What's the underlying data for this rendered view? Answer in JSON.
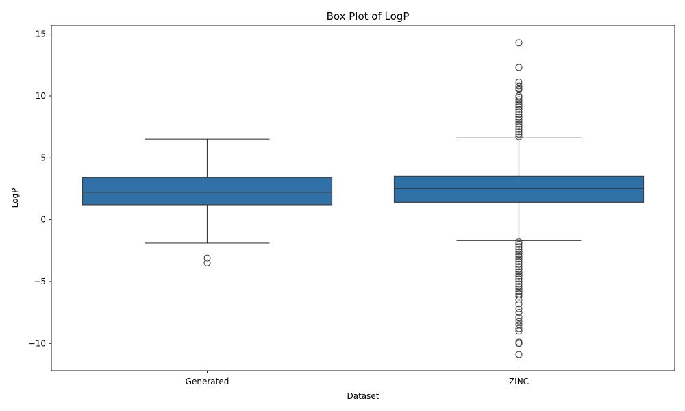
{
  "chart_data": {
    "type": "box",
    "title": "Box Plot of LogP",
    "xlabel": "Dataset",
    "ylabel": "LogP",
    "ylim": [
      -12.2,
      15.7
    ],
    "yticks": [
      -10,
      -5,
      0,
      5,
      10,
      15
    ],
    "ytick_labels": [
      "−10",
      "−5",
      "0",
      "5",
      "10",
      "15"
    ],
    "grid": false,
    "box_color": "#2f71a7",
    "line_color": "#3d3d3d",
    "categories": [
      "Generated",
      "ZINC"
    ],
    "boxes": [
      {
        "category": "Generated",
        "q1": 1.2,
        "median": 2.2,
        "q3": 3.4,
        "whisker_low": -1.9,
        "whisker_high": 6.5,
        "outliers": [
          -3.1,
          -3.5
        ]
      },
      {
        "category": "ZINC",
        "q1": 1.4,
        "median": 2.5,
        "q3": 3.5,
        "whisker_low": -1.7,
        "whisker_high": 6.6,
        "outliers": [
          14.3,
          12.3,
          11.1,
          10.8,
          10.6,
          10.5,
          10.0,
          9.9,
          9.7,
          9.5,
          9.3,
          9.1,
          8.9,
          8.7,
          8.5,
          8.3,
          8.1,
          7.9,
          7.7,
          7.5,
          7.3,
          7.1,
          6.9,
          6.7,
          -1.8,
          -2.0,
          -2.2,
          -2.4,
          -2.6,
          -2.8,
          -3.0,
          -3.2,
          -3.4,
          -3.6,
          -3.8,
          -4.0,
          -4.2,
          -4.4,
          -4.6,
          -4.8,
          -5.0,
          -5.2,
          -5.4,
          -5.6,
          -5.8,
          -6.0,
          -6.2,
          -6.5,
          -6.8,
          -7.2,
          -7.5,
          -7.9,
          -8.2,
          -8.5,
          -8.8,
          -9.0,
          -9.9,
          -10.0,
          -10.9
        ]
      }
    ]
  }
}
